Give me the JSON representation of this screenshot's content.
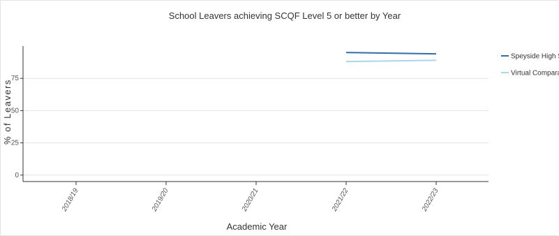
{
  "chart_data": {
    "type": "line",
    "title": "School Leavers achieving SCQF Level 5 or better by Year",
    "xlabel": "Academic Year",
    "ylabel": "% of Leavers",
    "categories": [
      "2018/19",
      "2019/20",
      "2020/21",
      "2021/22",
      "2022/23"
    ],
    "yticks": [
      0,
      25,
      50,
      75
    ],
    "ylim": [
      -5,
      100
    ],
    "grid": true,
    "legend_position": "right",
    "series": [
      {
        "name": "Speyside High School",
        "color": "#2f6ea6",
        "values": [
          null,
          null,
          null,
          95,
          94
        ]
      },
      {
        "name": "Virtual Comparator",
        "color": "#a9d6ea",
        "values": [
          null,
          null,
          null,
          88,
          89
        ]
      }
    ]
  }
}
